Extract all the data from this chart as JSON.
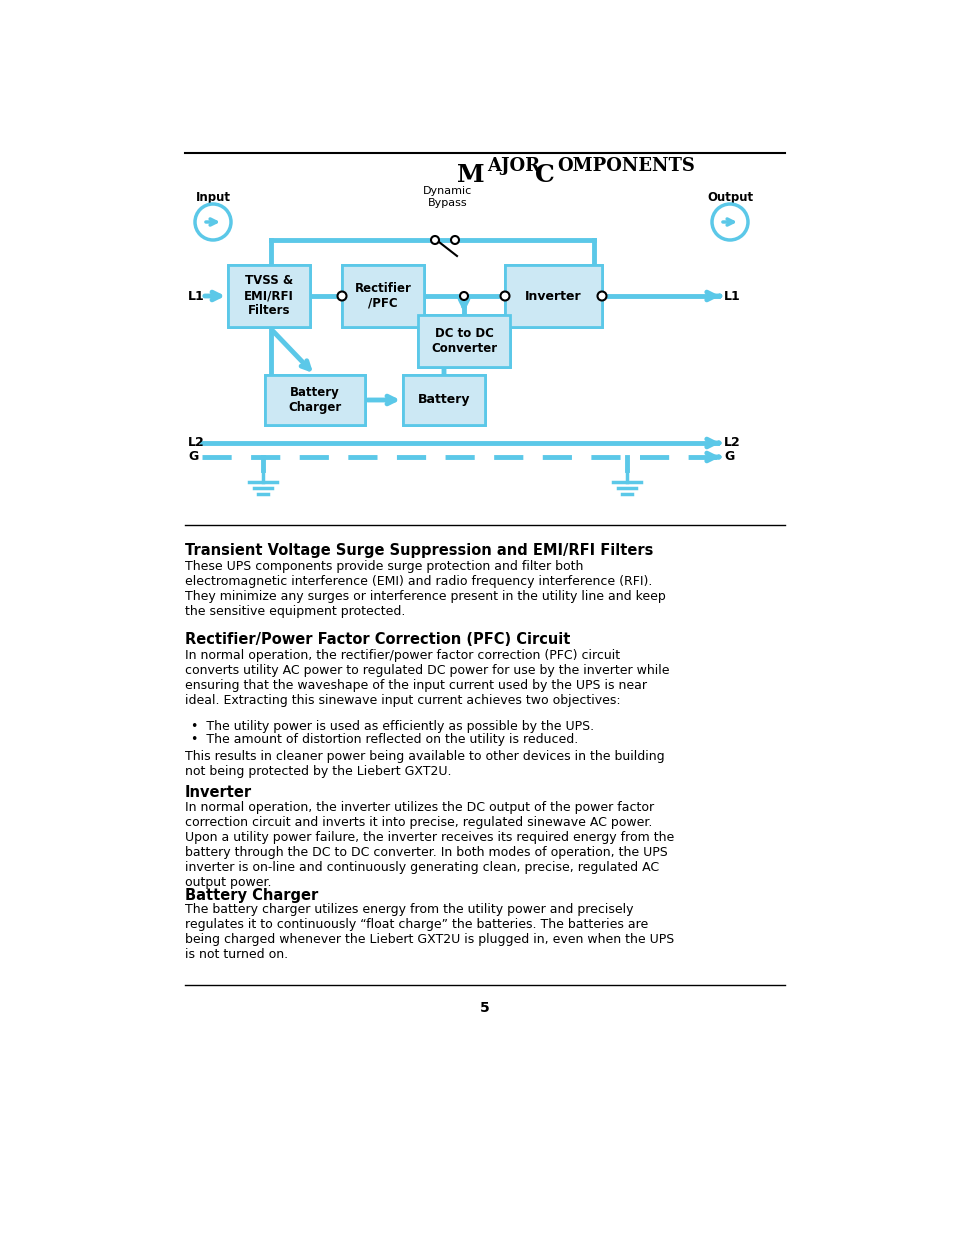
{
  "bg_color": "#ffffff",
  "cyan": "#5bc8e8",
  "box_fill": "#cce8f4",
  "box_stroke": "#5bc8e8",
  "section_heading1": "Transient Voltage Surge Suppression and EMI/RFI Filters",
  "section_body1": "These UPS components provide surge protection and filter both\nelectromagnetic interference (EMI) and radio frequency interference (RFI).\nThey minimize any surges or interference present in the utility line and keep\nthe sensitive equipment protected.",
  "section_heading2": "Rectifier/Power Factor Correction (PFC) Circuit",
  "section_body2": "In normal operation, the rectifier/power factor correction (PFC) circuit\nconverts utility AC power to regulated DC power for use by the inverter while\nensuring that the waveshape of the input current used by the UPS is near\nideal. Extracting this sinewave input current achieves two objectives:",
  "bullet1": "•  The utility power is used as efficiently as possible by the UPS.",
  "bullet2": "•  The amount of distortion reflected on the utility is reduced.",
  "section_body2b": "This results in cleaner power being available to other devices in the building\nnot being protected by the Liebert GXT2U.",
  "section_heading3": "Inverter",
  "section_body3": "In normal operation, the inverter utilizes the DC output of the power factor\ncorrection circuit and inverts it into precise, regulated sinewave AC power.\nUpon a utility power failure, the inverter receives its required energy from the\nbattery through the DC to DC converter. In both modes of operation, the UPS\ninverter is on-line and continuously generating clean, precise, regulated AC\noutput power.",
  "section_heading4": "Battery Charger",
  "section_body4": "The battery charger utilizes energy from the utility power and precisely\nregulates it to continuously “float charge” the batteries. The batteries are\nbeing charged whenever the Liebert GXT2U is plugged in, even when the UPS\nis not turned on.",
  "page_number": "5"
}
